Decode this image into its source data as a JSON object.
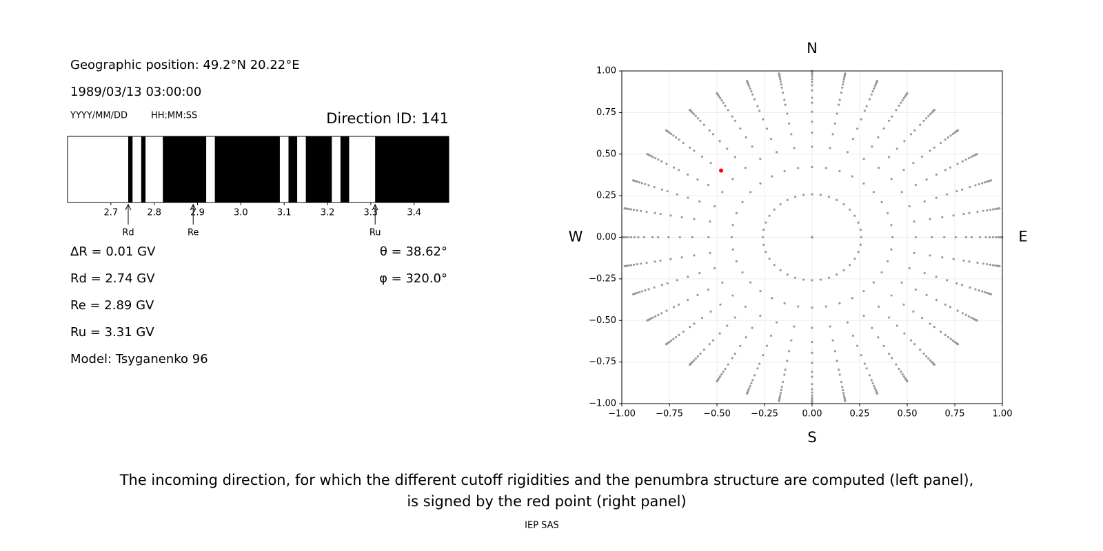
{
  "info": {
    "position": "Geographic position: 49.2°N 20.22°E",
    "datetime": "1989/03/13 03:00:00",
    "date_format": "YYYY/MM/DD",
    "time_format": "HH:MM:SS",
    "direction_id": "Direction ID: 141",
    "lines": [
      "ΔR = 0.01 GV",
      "Rd = 2.74 GV",
      "Re = 2.89 GV",
      "Ru = 3.31 GV",
      "Model: Tsyganenko 96"
    ],
    "angles": [
      "θ = 38.62°",
      "φ = 320.0°"
    ],
    "caption": [
      "The incoming direction, for which the different cutoff rigidities and the penumbra structure are computed (left panel),",
      "is signed by the red point (right panel)"
    ],
    "footer": "IEP SAS"
  },
  "chart_data": [
    {
      "type": "penumbra",
      "color": "#000000",
      "forbidden": [
        [
          2.74,
          2.75
        ],
        [
          2.77,
          2.78
        ],
        [
          2.82,
          2.92
        ],
        [
          2.94,
          3.09
        ],
        [
          3.11,
          3.13
        ],
        [
          3.15,
          3.21
        ],
        [
          3.23,
          3.25
        ],
        [
          3.31,
          3.48
        ]
      ],
      "xlim": [
        2.6,
        3.48
      ],
      "xticks": [
        2.7,
        2.8,
        2.9,
        {
          "value": 3,
          "label": "3.0"
        },
        3.1,
        3.2,
        3.3,
        3.4
      ],
      "cutoffs": [
        {
          "label": "Rd",
          "value": 2.74
        },
        {
          "label": "Re",
          "value": 2.89
        },
        {
          "label": "Ru",
          "value": 3.31
        }
      ]
    },
    {
      "type": "directions",
      "grid": true,
      "xlim": [
        -1,
        1
      ],
      "ylim": [
        -1,
        1
      ],
      "xticks": [
        {
          "value": -1,
          "label": "−1.00"
        },
        {
          "value": -0.75,
          "label": "−0.75"
        },
        {
          "value": -0.5,
          "label": "−0.50"
        },
        {
          "value": -0.25,
          "label": "−0.25"
        },
        {
          "value": 0,
          "label": "0.00"
        },
        {
          "value": 0.25,
          "label": "0.25"
        },
        {
          "value": 0.5,
          "label": "0.50"
        },
        {
          "value": 0.75,
          "label": "0.75"
        },
        {
          "value": 1,
          "label": "1.00"
        }
      ],
      "yticks": [
        {
          "value": -1,
          "label": "−1.00"
        },
        {
          "value": -0.75,
          "label": "−0.75"
        },
        {
          "value": -0.5,
          "label": "−0.50"
        },
        {
          "value": -0.25,
          "label": "−0.25"
        },
        {
          "value": 0,
          "label": "0.00"
        },
        {
          "value": 0.25,
          "label": "0.25"
        },
        {
          "value": 0.5,
          "label": "0.50"
        },
        {
          "value": 0.75,
          "label": "0.75"
        },
        {
          "value": 1,
          "label": "1.00"
        }
      ],
      "compass": {
        "north": "N",
        "south": "S",
        "west": "W",
        "east": "E"
      },
      "points": {
        "color": "#999999",
        "phi": [
          0,
          10,
          20,
          30,
          40,
          50,
          60,
          70,
          80,
          90,
          100,
          110,
          120,
          130,
          140,
          150,
          160,
          170,
          180,
          190,
          200,
          210,
          220,
          230,
          240,
          250,
          260,
          270,
          280,
          290,
          300,
          310,
          320,
          330,
          340,
          350
        ],
        "theta": [
          0,
          15,
          25,
          33,
          39,
          44,
          49,
          54,
          57,
          62,
          66,
          69,
          72,
          75,
          78,
          81,
          84,
          87,
          90
        ]
      },
      "selected": {
        "color": "#ff0000",
        "theta": 38.62,
        "phi": 320.0
      }
    }
  ]
}
